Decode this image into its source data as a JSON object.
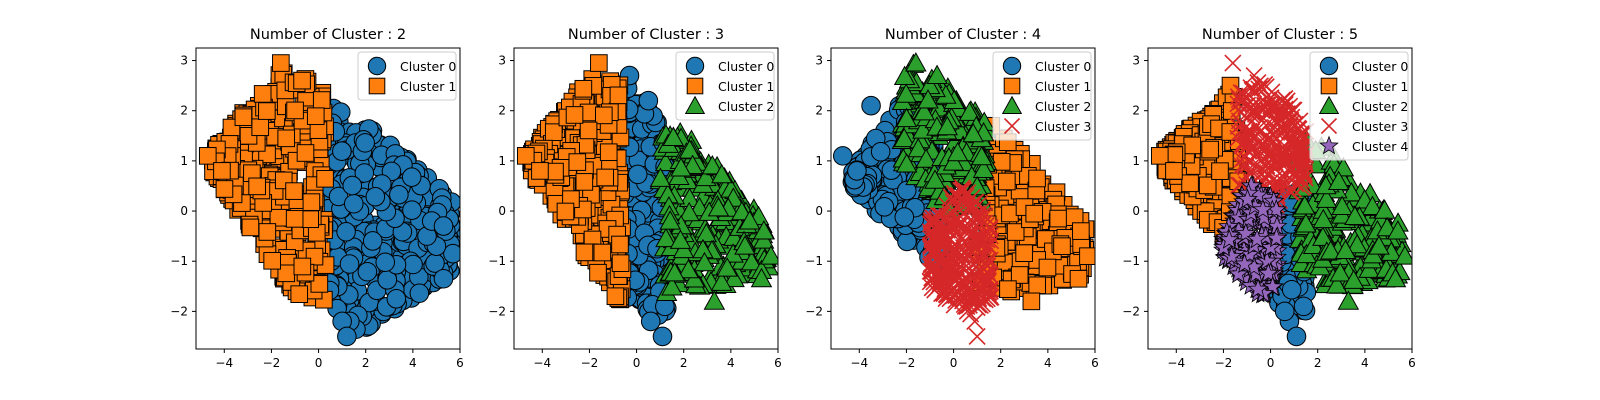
{
  "chart_data": [
    {
      "type": "scatter",
      "title": "Number of Cluster : 2",
      "xlim": [
        -5.2,
        6.0
      ],
      "ylim": [
        -2.75,
        3.25
      ],
      "xticks": [
        -4,
        -2,
        0,
        2,
        4,
        6
      ],
      "yticks": [
        -2,
        -1,
        0,
        1,
        2,
        3
      ],
      "grid": false,
      "legend_position": "top-right",
      "series": [
        {
          "name": "Cluster 0",
          "marker": "circle",
          "color": "#1f77b4",
          "region": {
            "xmin": 0.4,
            "xmax": 5.7,
            "yTop": [
              [
                0.4,
                2.1
              ],
              [
                1.5,
                2.0
              ],
              [
                5.7,
                0.2
              ]
            ],
            "yBot": [
              [
                0.4,
                -1.8
              ],
              [
                1.5,
                -2.5
              ],
              [
                5.7,
                -1.2
              ]
            ]
          },
          "count": 420,
          "points": [
            [
              1.0,
              -2.2
            ],
            [
              1.2,
              -2.5
            ],
            [
              3.3,
              -1.75
            ],
            [
              5.3,
              -1.35
            ],
            [
              5.4,
              -0.4
            ],
            [
              5.7,
              -0.85
            ],
            [
              5.0,
              -0.7
            ],
            [
              4.6,
              -0.5
            ],
            [
              4.8,
              -0.2
            ],
            [
              5.3,
              -0.3
            ]
          ]
        },
        {
          "name": "Cluster 1",
          "marker": "square",
          "color": "#ff7f0e",
          "region": {
            "xmin": -4.5,
            "xmax": 0.3,
            "yTop": [
              [
                -4.5,
                1.2
              ],
              [
                -1.6,
                2.9
              ],
              [
                0.3,
                2.5
              ]
            ],
            "yBot": [
              [
                -4.5,
                0.8
              ],
              [
                -1.0,
                -1.7
              ],
              [
                0.3,
                -1.8
              ]
            ]
          },
          "count": 420,
          "points": [
            [
              -4.7,
              1.1
            ],
            [
              -1.6,
              2.95
            ],
            [
              -0.7,
              2.6
            ],
            [
              -4.1,
              0.8
            ]
          ]
        }
      ]
    },
    {
      "type": "scatter",
      "title": "Number of Cluster : 3",
      "xlim": [
        -5.2,
        6.0
      ],
      "ylim": [
        -2.75,
        3.25
      ],
      "xticks": [
        -4,
        -2,
        0,
        2,
        4,
        6
      ],
      "yticks": [
        -2,
        -1,
        0,
        1,
        2,
        3
      ],
      "grid": false,
      "legend_position": "top-right",
      "series": [
        {
          "name": "Cluster 0",
          "marker": "circle",
          "color": "#1f77b4",
          "region": {
            "xmin": -0.5,
            "xmax": 1.3,
            "yTop": [
              [
                -0.5,
                2.7
              ],
              [
                1.3,
                1.5
              ]
            ],
            "yBot": [
              [
                -0.5,
                -1.7
              ],
              [
                1.3,
                -2.3
              ]
            ]
          },
          "count": 260,
          "points": [
            [
              -0.3,
              2.7
            ],
            [
              0.6,
              -2.2
            ],
            [
              1.1,
              -2.5
            ],
            [
              1.2,
              -1.9
            ],
            [
              0.5,
              2.2
            ]
          ]
        },
        {
          "name": "Cluster 1",
          "marker": "square",
          "color": "#ff7f0e",
          "region": {
            "xmin": -4.5,
            "xmax": -0.6,
            "yTop": [
              [
                -4.5,
                1.2
              ],
              [
                -1.6,
                2.9
              ],
              [
                -0.6,
                2.5
              ]
            ],
            "yBot": [
              [
                -4.5,
                0.8
              ],
              [
                -1.0,
                -1.7
              ],
              [
                -0.6,
                -1.8
              ]
            ]
          },
          "count": 340,
          "points": [
            [
              -4.7,
              1.1
            ],
            [
              -1.6,
              2.95
            ],
            [
              -4.1,
              0.8
            ]
          ]
        },
        {
          "name": "Cluster 2",
          "marker": "triangle",
          "color": "#2ca02c",
          "region": {
            "xmin": 1.0,
            "xmax": 5.6,
            "yTop": [
              [
                1.0,
                1.8
              ],
              [
                2.5,
                1.4
              ],
              [
                5.6,
                -0.3
              ]
            ],
            "yBot": [
              [
                1.0,
                -1.7
              ],
              [
                2.5,
                -1.6
              ],
              [
                5.6,
                -1.3
              ]
            ]
          },
          "count": 260,
          "points": [
            [
              3.3,
              -1.8
            ],
            [
              5.3,
              -1.35
            ],
            [
              5.4,
              -0.4
            ],
            [
              5.7,
              -0.9
            ],
            [
              4.6,
              -0.7
            ],
            [
              4.8,
              -0.2
            ]
          ]
        }
      ]
    },
    {
      "type": "scatter",
      "title": "Number of Cluster : 4",
      "xlim": [
        -5.2,
        6.0
      ],
      "ylim": [
        -2.75,
        3.25
      ],
      "xticks": [
        -4,
        -2,
        0,
        2,
        4,
        6
      ],
      "yticks": [
        -2,
        -1,
        0,
        1,
        2,
        3
      ],
      "grid": false,
      "legend_position": "top-right",
      "series": [
        {
          "name": "Cluster 0",
          "marker": "circle",
          "color": "#1f77b4",
          "region": {
            "xmin": -4.3,
            "xmax": -0.5,
            "yTop": [
              [
                -4.3,
                0.8
              ],
              [
                -2.0,
                2.3
              ],
              [
                -0.5,
                1.0
              ]
            ],
            "yBot": [
              [
                -4.3,
                0.5
              ],
              [
                -2.0,
                -0.6
              ],
              [
                -0.5,
                -1.2
              ]
            ]
          },
          "count": 280,
          "points": [
            [
              -4.7,
              1.1
            ],
            [
              -4.1,
              0.8
            ],
            [
              -3.5,
              2.1
            ]
          ]
        },
        {
          "name": "Cluster 1",
          "marker": "square",
          "color": "#ff7f0e",
          "region": {
            "xmin": 1.0,
            "xmax": 5.6,
            "yTop": [
              [
                1.0,
                1.8
              ],
              [
                2.5,
                1.4
              ],
              [
                5.6,
                -0.3
              ]
            ],
            "yBot": [
              [
                1.0,
                -1.4
              ],
              [
                2.5,
                -1.7
              ],
              [
                5.6,
                -1.3
              ]
            ]
          },
          "count": 260,
          "points": [
            [
              3.3,
              -1.8
            ],
            [
              5.3,
              -1.35
            ],
            [
              5.4,
              -0.4
            ],
            [
              5.7,
              -0.9
            ],
            [
              4.6,
              -0.7
            ],
            [
              1.6,
              1.7
            ]
          ]
        },
        {
          "name": "Cluster 2",
          "marker": "triangle",
          "color": "#2ca02c",
          "region": {
            "xmin": -2.2,
            "xmax": 1.4,
            "yTop": [
              [
                -2.2,
                2.6
              ],
              [
                -1.6,
                3.0
              ],
              [
                1.4,
                1.8
              ]
            ],
            "yBot": [
              [
                -2.2,
                1.0
              ],
              [
                -0.2,
                -0.1
              ],
              [
                1.4,
                0.2
              ]
            ]
          },
          "count": 220,
          "points": [
            [
              -1.6,
              2.95
            ],
            [
              -0.7,
              2.7
            ]
          ]
        },
        {
          "name": "Cluster 3",
          "marker": "x",
          "color": "#d62728",
          "region": {
            "xmin": -1.0,
            "xmax": 1.6,
            "yTop": [
              [
                -1.0,
                -0.2
              ],
              [
                0.3,
                0.5
              ],
              [
                1.6,
                0.0
              ]
            ],
            "yBot": [
              [
                -1.0,
                -1.5
              ],
              [
                0.6,
                -2.1
              ],
              [
                1.6,
                -1.8
              ]
            ]
          },
          "count": 320,
          "points": [
            [
              0.9,
              -2.2
            ],
            [
              1.0,
              -2.5
            ],
            [
              0.5,
              -1.9
            ]
          ]
        }
      ]
    },
    {
      "type": "scatter",
      "title": "Number of Cluster : 5",
      "xlim": [
        -5.2,
        6.0
      ],
      "ylim": [
        -2.75,
        3.25
      ],
      "xticks": [
        -4,
        -2,
        0,
        2,
        4,
        6
      ],
      "yticks": [
        -2,
        -1,
        0,
        1,
        2,
        3
      ],
      "grid": false,
      "legend_position": "top-right",
      "series": [
        {
          "name": "Cluster 0",
          "marker": "circle",
          "color": "#1f77b4",
          "region": {
            "xmin": 0.2,
            "xmax": 1.6,
            "yTop": [
              [
                0.2,
                0.3
              ],
              [
                1.6,
                0.4
              ]
            ],
            "yBot": [
              [
                0.2,
                -1.8
              ],
              [
                1.6,
                -2.2
              ]
            ]
          },
          "count": 150,
          "points": [
            [
              0.8,
              -2.2
            ],
            [
              1.1,
              -2.5
            ],
            [
              1.4,
              -1.9
            ],
            [
              0.6,
              -2.0
            ]
          ]
        },
        {
          "name": "Cluster 1",
          "marker": "square",
          "color": "#ff7f0e",
          "region": {
            "xmin": -4.5,
            "xmax": -1.3,
            "yTop": [
              [
                -4.5,
                1.2
              ],
              [
                -1.6,
                2.4
              ],
              [
                -1.3,
                2.0
              ]
            ],
            "yBot": [
              [
                -4.5,
                0.8
              ],
              [
                -1.9,
                -0.6
              ],
              [
                -1.3,
                -0.3
              ]
            ]
          },
          "count": 300,
          "points": [
            [
              -4.7,
              1.1
            ],
            [
              -4.1,
              0.8
            ],
            [
              -1.7,
              2.5
            ]
          ]
        },
        {
          "name": "Cluster 2",
          "marker": "triangle",
          "color": "#2ca02c",
          "region": {
            "xmin": 1.2,
            "xmax": 5.6,
            "yTop": [
              [
                1.2,
                1.6
              ],
              [
                2.5,
                1.2
              ],
              [
                5.6,
                -0.3
              ]
            ],
            "yBot": [
              [
                1.2,
                -1.4
              ],
              [
                2.5,
                -1.6
              ],
              [
                5.6,
                -1.3
              ]
            ]
          },
          "count": 240,
          "points": [
            [
              3.3,
              -1.8
            ],
            [
              5.3,
              -1.35
            ],
            [
              5.4,
              -0.4
            ],
            [
              5.7,
              -0.9
            ],
            [
              4.6,
              -0.7
            ]
          ]
        },
        {
          "name": "Cluster 3",
          "marker": "x",
          "color": "#d62728",
          "region": {
            "xmin": -1.4,
            "xmax": 1.5,
            "yTop": [
              [
                -1.4,
                2.4
              ],
              [
                0.2,
                2.7
              ],
              [
                1.5,
                1.6
              ]
            ],
            "yBot": [
              [
                -1.4,
                0.5
              ],
              [
                0.0,
                0.0
              ],
              [
                1.5,
                0.5
              ]
            ]
          },
          "count": 280,
          "points": [
            [
              -1.6,
              2.95
            ],
            [
              -0.7,
              2.7
            ]
          ]
        },
        {
          "name": "Cluster 4",
          "marker": "star",
          "color": "#9467bd",
          "region": {
            "xmin": -2.0,
            "xmax": 0.3,
            "yTop": [
              [
                -2.0,
                -0.5
              ],
              [
                -1.0,
                0.6
              ],
              [
                0.3,
                0.2
              ]
            ],
            "yBot": [
              [
                -2.0,
                -0.9
              ],
              [
                -0.6,
                -1.7
              ],
              [
                0.3,
                -1.6
              ]
            ]
          },
          "count": 220,
          "points": []
        }
      ]
    }
  ]
}
